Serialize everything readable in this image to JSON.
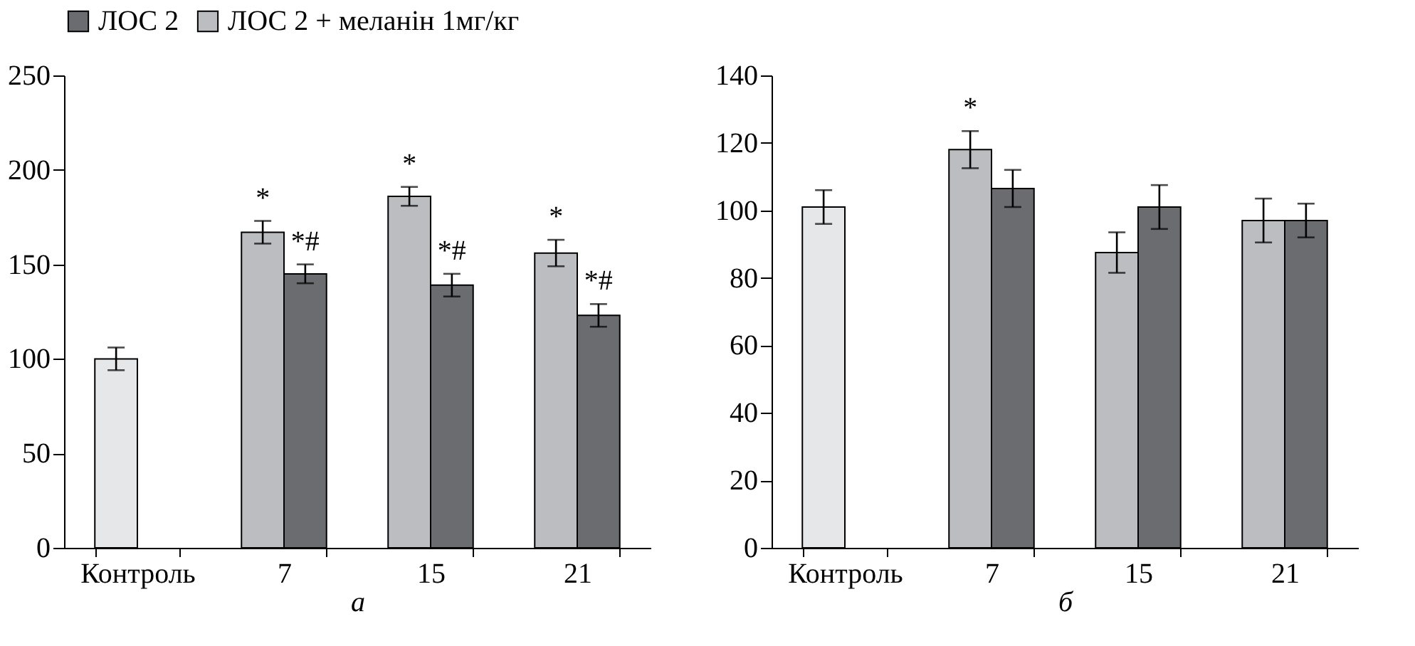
{
  "chart_data": [
    {
      "type": "bar",
      "xlabel": "а",
      "categories": [
        "Контроль",
        "7",
        "15",
        "21"
      ],
      "series": [
        {
          "color": "#e6e7e9",
          "values": [
            100,
            null,
            null,
            null
          ],
          "errors": [
            6,
            null,
            null,
            null
          ]
        },
        {
          "name": "ЛОС 2 + меланін 1мг/кг",
          "color": "#bcbdc1",
          "values": [
            null,
            167,
            186,
            156
          ],
          "errors": [
            null,
            6,
            5,
            7
          ]
        },
        {
          "name": "ЛОС 2",
          "color": "#6b6c70",
          "values": [
            null,
            145,
            139,
            123
          ],
          "errors": [
            null,
            5,
            6,
            6
          ]
        }
      ],
      "ylim": [
        0,
        250
      ],
      "yticks": [
        0,
        50,
        100,
        150,
        200,
        250
      ],
      "grid": false,
      "legend": "top",
      "annotations": [
        {
          "text": "*",
          "x": "7",
          "y": 167
        },
        {
          "text": "*#",
          "x": "7",
          "y": 145
        },
        {
          "text": "*",
          "x": "15",
          "y": 186
        },
        {
          "text": "*#",
          "x": "15",
          "y": 139
        },
        {
          "text": "*",
          "x": "21",
          "y": 156
        },
        {
          "text": "*#",
          "x": "21",
          "y": 123
        }
      ]
    },
    {
      "type": "bar",
      "xlabel": "б",
      "categories": [
        "Контроль",
        "7",
        "15",
        "21"
      ],
      "series": [
        {
          "color": "#e6e7e9",
          "values": [
            101,
            null,
            null,
            null
          ],
          "errors": [
            5,
            null,
            null,
            null
          ]
        },
        {
          "name": "ЛОС 2 + меланін 1мг/кг",
          "color": "#bcbdc1",
          "values": [
            null,
            118,
            87.5,
            97
          ],
          "errors": [
            null,
            5.5,
            6,
            6.5
          ]
        },
        {
          "name": "ЛОС 2",
          "color": "#6b6c70",
          "values": [
            null,
            106.5,
            101,
            97
          ],
          "errors": [
            null,
            5.5,
            6.5,
            5
          ]
        }
      ],
      "ylim": [
        0,
        140
      ],
      "yticks": [
        0,
        20,
        40,
        60,
        80,
        100,
        120,
        140
      ],
      "grid": false,
      "legend": "top",
      "annotations": [
        {
          "text": "*",
          "x": "7",
          "y": 118
        }
      ]
    }
  ]
}
